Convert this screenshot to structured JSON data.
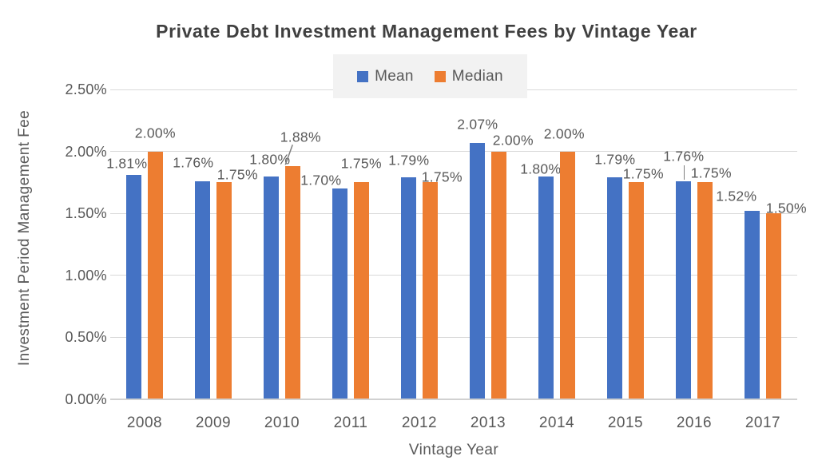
{
  "chart_data": {
    "type": "bar",
    "title": "Private Debt Investment Management Fees by Vintage Year",
    "xlabel": "Vintage Year",
    "ylabel": "Investment Period Management Fee",
    "categories": [
      "2008",
      "2009",
      "2010",
      "2011",
      "2012",
      "2013",
      "2014",
      "2015",
      "2016",
      "2017"
    ],
    "series": [
      {
        "name": "Mean",
        "color": "#4472C4",
        "values": [
          1.81,
          1.76,
          1.8,
          1.7,
          1.79,
          2.07,
          1.8,
          1.79,
          1.76,
          1.52
        ],
        "labels": [
          "1.81%",
          "1.76%",
          "1.80%",
          "1.70%",
          "1.79%",
          "2.07%",
          "1.80%",
          "1.79%",
          "1.76%",
          "1.52%"
        ]
      },
      {
        "name": "Median",
        "color": "#ED7D31",
        "values": [
          2.0,
          1.75,
          1.88,
          1.75,
          1.75,
          2.0,
          2.0,
          1.75,
          1.75,
          1.5
        ],
        "labels": [
          "2.00%",
          "1.75%",
          "1.88%",
          "1.75%",
          "1.75%",
          "2.00%",
          "2.00%",
          "1.75%",
          "1.75%",
          "1.50%"
        ]
      }
    ],
    "ylim": [
      0,
      2.5
    ],
    "ytick_step": 0.5,
    "yticks": [
      "0.00%",
      "0.50%",
      "1.00%",
      "1.50%",
      "2.00%",
      "2.50%"
    ],
    "grid": true,
    "legend_position": "top-center",
    "data_label_color": "#595959",
    "text_color": "#595959",
    "title_color": "#404040",
    "gridline_color": "#D9D9D9",
    "legend_background": "#F2F2F2"
  }
}
